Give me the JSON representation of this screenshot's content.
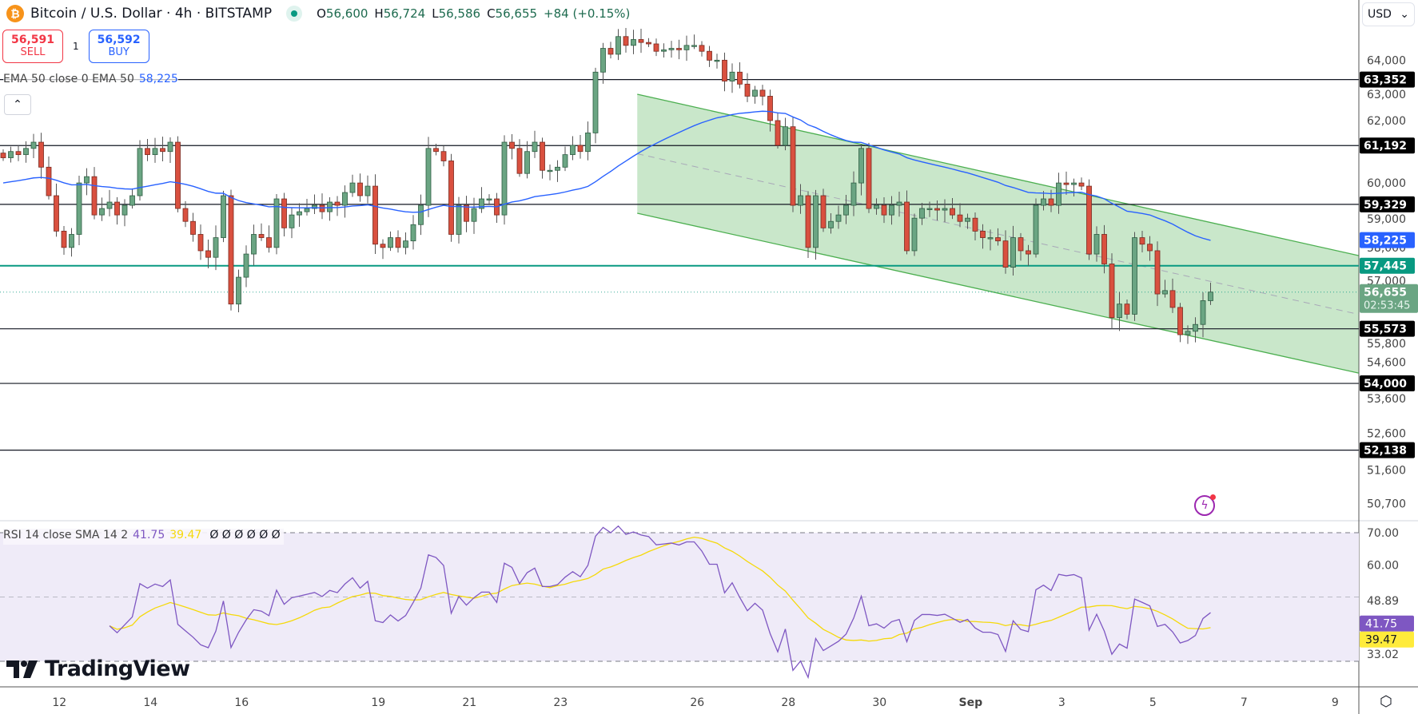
{
  "header": {
    "symbol_title": "Bitcoin / U.S. Dollar · 4h · BITSTAMP",
    "ohlc": {
      "o_label": "O",
      "o": "56,600",
      "h_label": "H",
      "h": "56,724",
      "l_label": "L",
      "l": "56,586",
      "c_label": "C",
      "c": "56,655",
      "change": "+84 (+0.15%)"
    }
  },
  "trade": {
    "sell_price": "56,591",
    "sell_label": "SELL",
    "qty": "1",
    "buy_price": "56,592",
    "buy_label": "BUY"
  },
  "ema_legend": {
    "label": "EMA 50 close 0 EMA 50",
    "value": "58,225"
  },
  "rsi_legend": {
    "label": "RSI 14 close SMA 14 2",
    "rsi": "41.75",
    "sma": "39.47",
    "empty_values": "Ø Ø Ø Ø Ø Ø"
  },
  "collapse_icon": "chevron-up-icon",
  "logo": {
    "text": "TradingView"
  },
  "currency": "USD",
  "colors": {
    "up": "#6ba583",
    "down": "#d9503f",
    "ema": "#2962ff",
    "teal": "#089981",
    "rsi": "#7e57c2",
    "sma": "#f5d90a",
    "channel": "#4caf50"
  },
  "price_axis": {
    "ticks": [
      "64,000",
      "63,000",
      "62,000",
      "60,000",
      "59,000",
      "58,000",
      "57,000",
      "55,800",
      "54,600",
      "53,600",
      "52,600",
      "51,600",
      "50,700"
    ],
    "tick_values": [
      64000,
      63000,
      62000,
      60000,
      59000,
      58000,
      57000,
      55800,
      54600,
      53600,
      52600,
      51600,
      50700
    ],
    "levels": [
      {
        "value": 63352,
        "label": "63,352",
        "kind": "black"
      },
      {
        "value": 61192,
        "label": "61,192",
        "kind": "black"
      },
      {
        "value": 59329,
        "label": "59,329",
        "kind": "black"
      },
      {
        "value": 57445,
        "label": "57,445",
        "kind": "teal"
      },
      {
        "value": 55573,
        "label": "55,573",
        "kind": "black"
      },
      {
        "value": 54000,
        "label": "54,000",
        "kind": "black"
      },
      {
        "value": 52138,
        "label": "52,138",
        "kind": "black"
      }
    ],
    "ema_badge": {
      "value": 58225,
      "label": "58,225"
    },
    "last_badge": {
      "value": 56655,
      "label": "56,655",
      "countdown": "02:53:45"
    }
  },
  "rsi_axis": {
    "ticks": [
      {
        "value": 70,
        "label": "70.00"
      },
      {
        "value": 60,
        "label": "60.00"
      },
      {
        "value": 48.89,
        "label": "48.89"
      },
      {
        "value": 33.02,
        "label": "33.02"
      }
    ],
    "rsi_badge": {
      "value": 41.75,
      "label": "41.75"
    },
    "sma_badge": {
      "value": 39.47,
      "label": "39.47"
    }
  },
  "time_axis": [
    {
      "label": "12",
      "day": 0
    },
    {
      "label": "14",
      "day": 2
    },
    {
      "label": "16",
      "day": 4
    },
    {
      "label": "19",
      "day": 7
    },
    {
      "label": "21",
      "day": 9
    },
    {
      "label": "23",
      "day": 11
    },
    {
      "label": "26",
      "day": 14
    },
    {
      "label": "28",
      "day": 16
    },
    {
      "label": "30",
      "day": 18
    },
    {
      "label": "Sep",
      "day": 20
    },
    {
      "label": "3",
      "day": 22
    },
    {
      "label": "5",
      "day": 24
    },
    {
      "label": "7",
      "day": 26
    },
    {
      "label": "9",
      "day": 28
    }
  ],
  "chart_data": {
    "type": "candlestick",
    "interval": "4h",
    "closes": [
      60800,
      61000,
      60900,
      61100,
      61300,
      60500,
      59600,
      58500,
      58000,
      58400,
      60000,
      60200,
      59000,
      59200,
      59400,
      59000,
      59300,
      59600,
      61100,
      60900,
      61100,
      61000,
      61300,
      59200,
      58800,
      58400,
      57900,
      57700,
      58300,
      59600,
      56300,
      57100,
      57800,
      58400,
      58300,
      58000,
      59500,
      58600,
      59000,
      59100,
      59200,
      59300,
      59100,
      59400,
      59300,
      59700,
      60000,
      59600,
      59900,
      58100,
      58000,
      58300,
      58000,
      58200,
      58700,
      59300,
      61100,
      61000,
      60700,
      58400,
      59300,
      58800,
      59200,
      59500,
      59500,
      59000,
      61300,
      61100,
      60300,
      61000,
      61300,
      60400,
      60400,
      60500,
      60900,
      61200,
      61000,
      61600,
      63600,
      64400,
      64200,
      64800,
      64500,
      64700,
      64600,
      64550,
      64300,
      64350,
      64400,
      64350,
      64500,
      64500,
      64300,
      64000,
      64000,
      63300,
      63600,
      63200,
      62800,
      63000,
      62800,
      62000,
      61200,
      61800,
      59300,
      59600,
      58000,
      59600,
      58600,
      58800,
      59000,
      59300,
      60000,
      61100,
      59200,
      59300,
      59000,
      59300,
      59400,
      57900,
      58900,
      59200,
      59200,
      59150,
      59200,
      59000,
      58800,
      58900,
      58500,
      58300,
      58300,
      58200,
      57400,
      58300,
      57900,
      57800,
      59300,
      59500,
      59300,
      60000,
      59950,
      60000,
      59900,
      57800,
      58400,
      57500,
      55900,
      56300,
      56000,
      58300,
      58100,
      57900,
      56600,
      56700,
      56200,
      55400,
      55500,
      55700,
      56400,
      56655
    ],
    "ema_period": 50,
    "rsi_period": 14,
    "rsi_sma_period": 14,
    "channel": {
      "start_index": 83.5,
      "end_index": 178.5,
      "upper": [
        62865,
        57752
      ],
      "lower": [
        59052,
        54293
      ]
    },
    "price_scale": "log"
  }
}
